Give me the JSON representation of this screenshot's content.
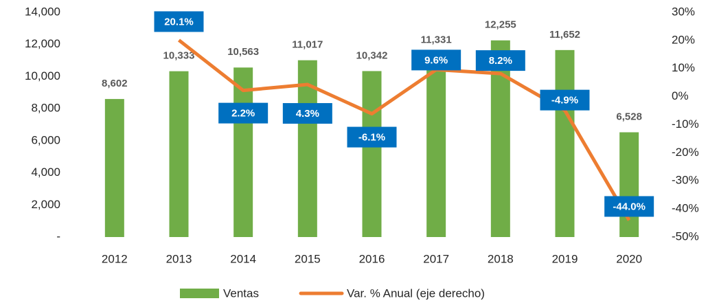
{
  "chart_data": {
    "type": "bar",
    "categories": [
      "2012",
      "2013",
      "2014",
      "2015",
      "2016",
      "2017",
      "2018",
      "2019",
      "2020"
    ],
    "series": [
      {
        "name": "Ventas",
        "type": "bar",
        "color": "#70ad47",
        "values": [
          8602,
          10333,
          10563,
          11017,
          10342,
          11331,
          12255,
          11652,
          6528
        ],
        "value_labels": [
          "8,602",
          "10,333",
          "10,563",
          "11,017",
          "10,342",
          "11,331",
          "12,255",
          "11,652",
          "6,528"
        ]
      },
      {
        "name": "Var. % Anual (eje derecho)",
        "type": "line",
        "axis": "y2",
        "color": "#ed7d31",
        "label_color": "#0070c0",
        "values": [
          null,
          20.1,
          2.2,
          4.3,
          -6.1,
          9.6,
          8.2,
          -4.9,
          -44.0
        ],
        "value_labels": [
          null,
          "20.1%",
          "2.2%",
          "4.3%",
          "-6.1%",
          "9.6%",
          "8.2%",
          "-4.9%",
          "-44.0%"
        ]
      }
    ],
    "ylim": [
      0,
      14000
    ],
    "yticks": [
      {
        "value": 0,
        "label": "-"
      },
      {
        "value": 2000,
        "label": "2,000"
      },
      {
        "value": 4000,
        "label": "4,000"
      },
      {
        "value": 6000,
        "label": "6,000"
      },
      {
        "value": 8000,
        "label": "8,000"
      },
      {
        "value": 10000,
        "label": "10,000"
      },
      {
        "value": 12000,
        "label": "12,000"
      },
      {
        "value": 14000,
        "label": "14,000"
      }
    ],
    "y2lim": [
      -50,
      30
    ],
    "y2ticks": [
      {
        "value": -50,
        "label": "-50%"
      },
      {
        "value": -40,
        "label": "-40%"
      },
      {
        "value": -30,
        "label": "-30%"
      },
      {
        "value": -20,
        "label": "-20%"
      },
      {
        "value": -10,
        "label": "-10%"
      },
      {
        "value": 0,
        "label": "0%"
      },
      {
        "value": 10,
        "label": "10%"
      },
      {
        "value": 20,
        "label": "20%"
      },
      {
        "value": 30,
        "label": "30%"
      }
    ],
    "grid": false,
    "legend": "bottom"
  }
}
